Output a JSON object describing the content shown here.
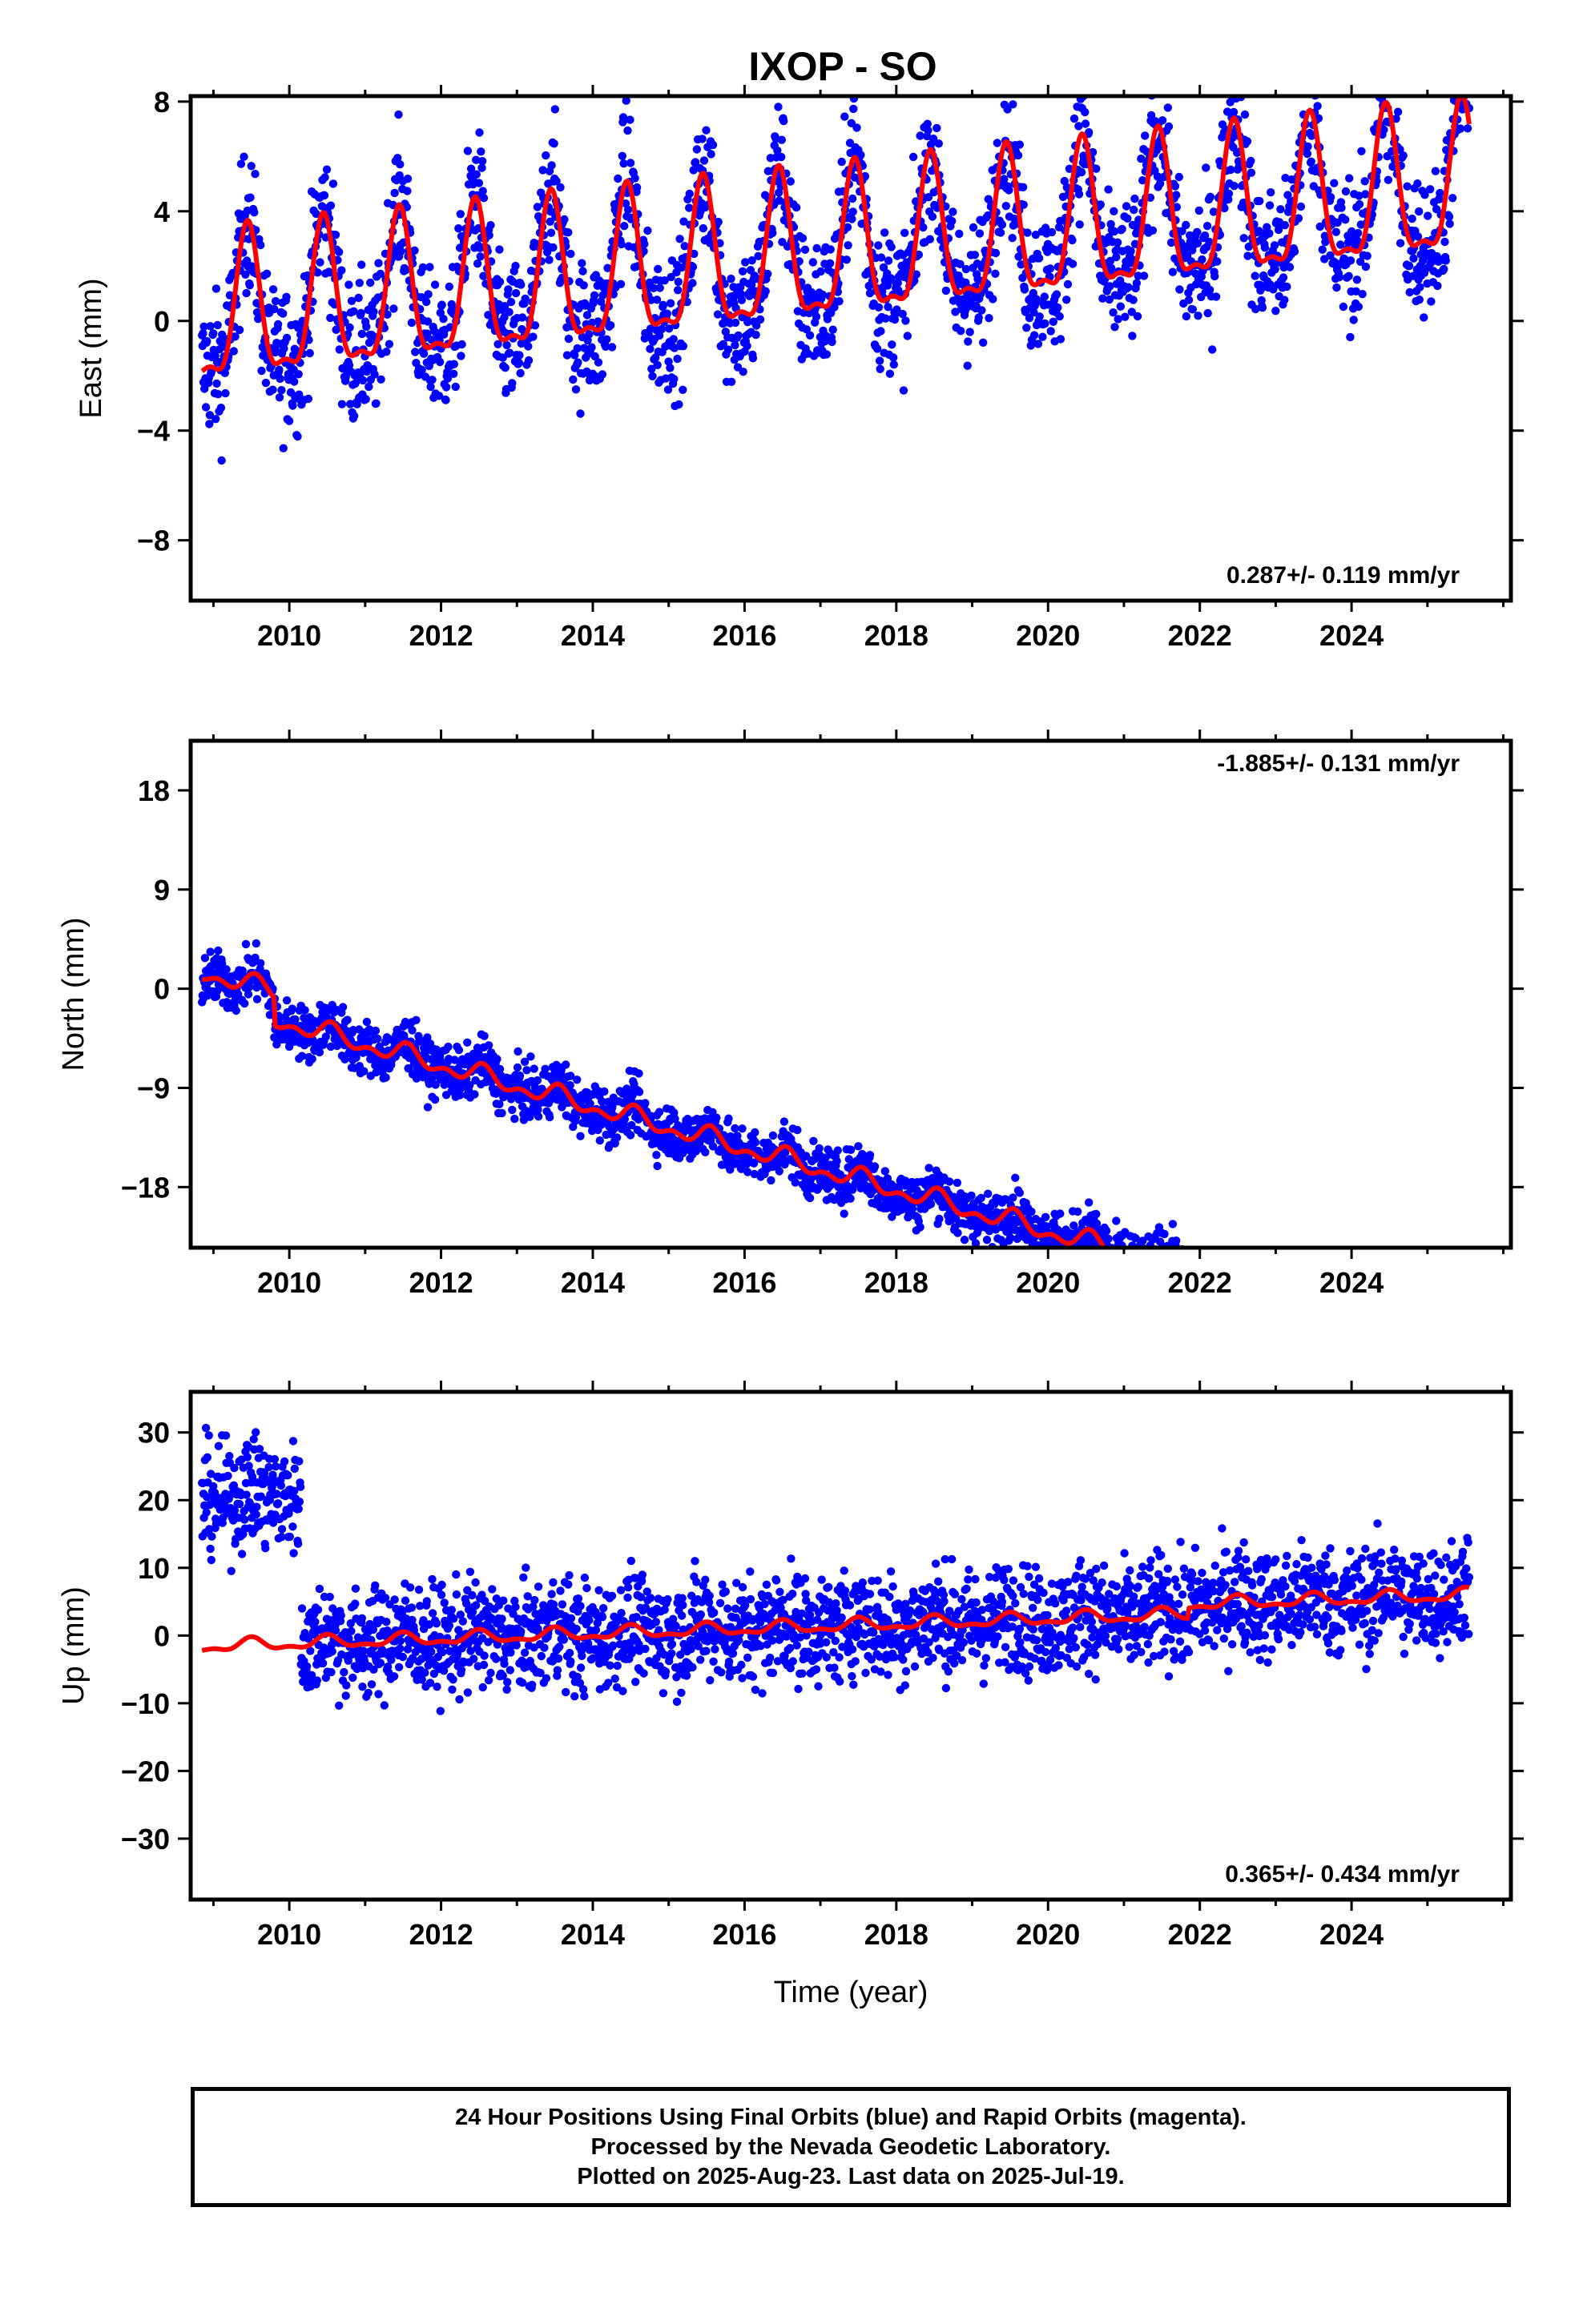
{
  "colors": {
    "data": "#0000ff",
    "model": "#ff0000",
    "frame": "#000000"
  },
  "chart_data": [
    {
      "type": "scatter",
      "title": "IXOP - SO",
      "ylabel": "East (mm)",
      "xlabel": "",
      "xlim": [
        2008.7,
        2026.1
      ],
      "ylim": [
        -10.2,
        8.2
      ],
      "xticks": [
        2010,
        2012,
        2014,
        2016,
        2018,
        2020,
        2022,
        2024
      ],
      "yticks": [
        -8,
        -4,
        0,
        4,
        8
      ],
      "rate_label": "0.287+/- 0.119 mm/yr",
      "rate_position": "bottom-right",
      "data_range": [
        2008.85,
        2025.55
      ],
      "model": {
        "offset": 0.0,
        "slope": 0.287,
        "annual_amp": 2.6,
        "semiannual_amp": 0.9,
        "peak": 0.45,
        "noise": 1.3,
        "steps": []
      },
      "series": [
        {
          "name": "",
          "marker": "dot",
          "color": "#0000ff"
        },
        {
          "name": "",
          "marker": "line",
          "color": "#ff0000"
        }
      ]
    },
    {
      "type": "scatter",
      "title": "",
      "ylabel": "North (mm)",
      "xlabel": "",
      "xlim": [
        2008.7,
        2026.1
      ],
      "ylim": [
        -23.5,
        22.5
      ],
      "xticks": [
        2010,
        2012,
        2014,
        2016,
        2018,
        2020,
        2022,
        2024
      ],
      "yticks": [
        -18,
        -9,
        0,
        9,
        18
      ],
      "rate_label": "-1.885+/- 0.131 mm/yr",
      "rate_position": "top-right",
      "data_range": [
        2008.85,
        2025.55
      ],
      "model": {
        "offset": 1.5,
        "slope": -1.885,
        "annual_amp": 0.7,
        "semiannual_amp": 0.5,
        "peak": 0.55,
        "noise": 1.2,
        "steps": [
          [
            2009.8,
            -2.5
          ],
          [
            2021.85,
            -2.5
          ]
        ]
      },
      "series": [
        {
          "name": "",
          "marker": "dot",
          "color": "#0000ff"
        },
        {
          "name": "",
          "marker": "line",
          "color": "#ff0000"
        }
      ]
    },
    {
      "type": "scatter",
      "title": "",
      "ylabel": "Up (mm)",
      "xlabel": "Time (year)",
      "xlim": [
        2008.7,
        2026.1
      ],
      "ylim": [
        -39,
        36
      ],
      "xticks": [
        2010,
        2012,
        2014,
        2016,
        2018,
        2020,
        2022,
        2024
      ],
      "yticks": [
        -30,
        -20,
        -10,
        0,
        10,
        20,
        30
      ],
      "rate_label": "0.365+/- 0.434 mm/yr",
      "rate_position": "bottom-right",
      "data_range": [
        2008.85,
        2025.55
      ],
      "model": {
        "offset": -1.6,
        "slope": 0.365,
        "annual_amp": 0.8,
        "semiannual_amp": 0.4,
        "peak": 0.5,
        "noise": 4.0,
        "steps": [
          [
            2021.85,
            1.5
          ]
        ],
        "data_offsets": [
          [
            2008.85,
            2010.15,
            22.0
          ]
        ]
      },
      "series": [
        {
          "name": "",
          "marker": "dot",
          "color": "#0000ff"
        },
        {
          "name": "",
          "marker": "line",
          "color": "#ff0000"
        }
      ]
    }
  ],
  "footer": {
    "line1": "24 Hour Positions Using Final Orbits (blue) and Rapid Orbits (magenta).",
    "line2": "Processed by the Nevada Geodetic Laboratory.",
    "line3": "Plotted on 2025-Aug-23. Last data on 2025-Jul-19."
  }
}
